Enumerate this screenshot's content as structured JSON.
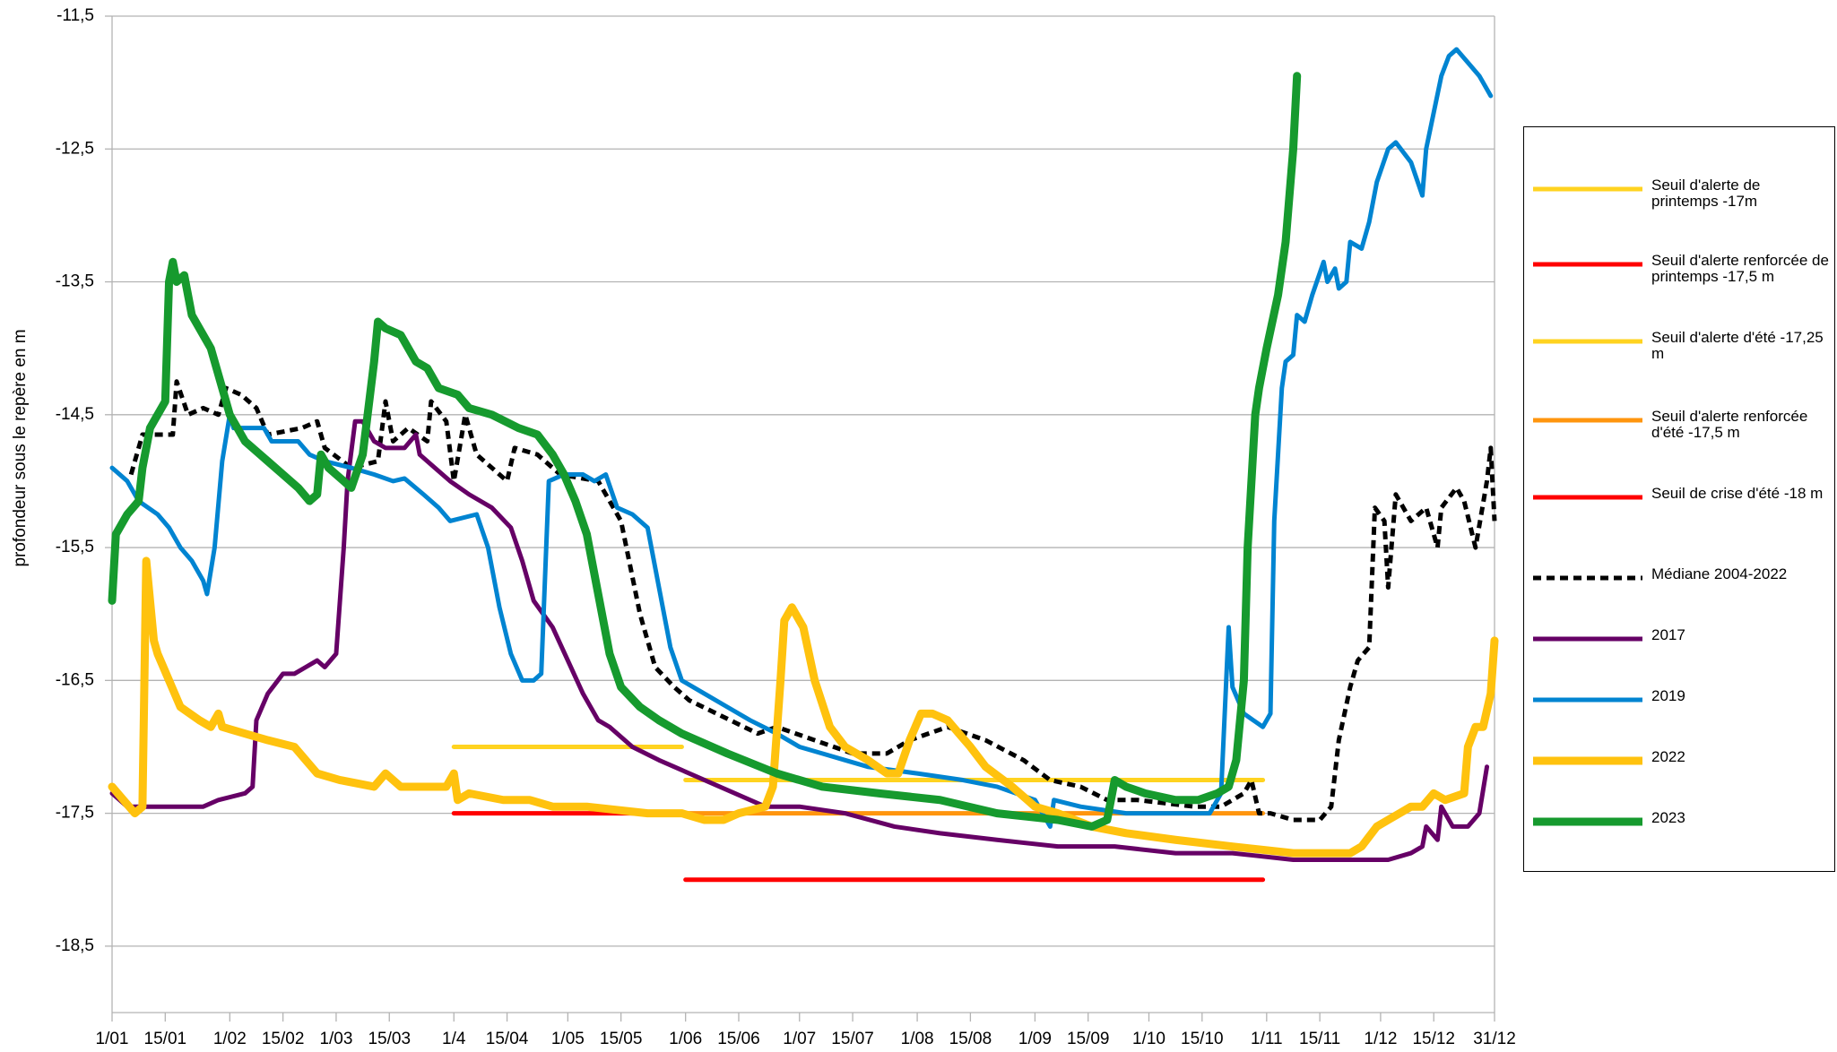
{
  "chart_data": {
    "type": "line",
    "y_label": "profondeur sous le repère en m",
    "xlim": [
      0,
      364
    ],
    "ylim": [
      -19,
      -11.5
    ],
    "grid": true,
    "legend": "right",
    "xticks": [
      {
        "value": 0,
        "label": "1/01"
      },
      {
        "value": 14,
        "label": "15/01"
      },
      {
        "value": 31,
        "label": "1/02"
      },
      {
        "value": 45,
        "label": "15/02"
      },
      {
        "value": 59,
        "label": "1/03"
      },
      {
        "value": 73,
        "label": "15/03"
      },
      {
        "value": 90,
        "label": "1/4"
      },
      {
        "value": 104,
        "label": "15/04"
      },
      {
        "value": 120,
        "label": "1/05"
      },
      {
        "value": 134,
        "label": "15/05"
      },
      {
        "value": 151,
        "label": "1/06"
      },
      {
        "value": 165,
        "label": "15/06"
      },
      {
        "value": 181,
        "label": "1/07"
      },
      {
        "value": 195,
        "label": "15/07"
      },
      {
        "value": 212,
        "label": "1/08"
      },
      {
        "value": 226,
        "label": "15/08"
      },
      {
        "value": 243,
        "label": "1/09"
      },
      {
        "value": 257,
        "label": "15/09"
      },
      {
        "value": 273,
        "label": "1/10"
      },
      {
        "value": 287,
        "label": "15/10"
      },
      {
        "value": 304,
        "label": "1/11"
      },
      {
        "value": 318,
        "label": "15/11"
      },
      {
        "value": 334,
        "label": "1/12"
      },
      {
        "value": 348,
        "label": "15/12"
      },
      {
        "value": 364,
        "label": "31/12"
      }
    ],
    "yticks": [
      {
        "value": -11.5,
        "label": "-11,5"
      },
      {
        "value": -12.5,
        "label": "-12,5"
      },
      {
        "value": -13.5,
        "label": "-13,5"
      },
      {
        "value": -14.5,
        "label": "-14,5"
      },
      {
        "value": -15.5,
        "label": "-15,5"
      },
      {
        "value": -16.5,
        "label": "-16,5"
      },
      {
        "value": -17.5,
        "label": "-17,5"
      },
      {
        "value": -18.5,
        "label": "-18,5"
      }
    ],
    "series": [
      {
        "name": "Seuil d'alerte de printemps -17m",
        "color": "#ffd320",
        "x": [
          90,
          150
        ],
        "values": [
          -17,
          -17
        ]
      },
      {
        "name": "Seuil d'alerte renforcée de printemps -17,5 m",
        "color": "#ff0000",
        "x": [
          90,
          151
        ],
        "values": [
          -17.5,
          -17.5
        ]
      },
      {
        "name": "Seuil d'alerte d'été -17,25 m",
        "color": "#ffd320",
        "x": [
          151,
          303
        ],
        "values": [
          -17.25,
          -17.25
        ]
      },
      {
        "name": "Seuil d'alerte renforcée d'été -17,5 m",
        "color": "#ff950e",
        "x": [
          151,
          303
        ],
        "values": [
          -17.5,
          -17.5
        ]
      },
      {
        "name": "Seuil de crise d'été -18 m",
        "color": "#ff0000",
        "x": [
          151,
          303
        ],
        "values": [
          -18,
          -18
        ]
      },
      {
        "name": "Médiane 2004-2022",
        "color": "#000000",
        "style": "dashed",
        "x": [
          5,
          8,
          12,
          16,
          17,
          20,
          24,
          28,
          30,
          34,
          38,
          41,
          50,
          54,
          56,
          63,
          70,
          72,
          74,
          78,
          83,
          84,
          88,
          90,
          93,
          96,
          104,
          106,
          112,
          118,
          128,
          134,
          139,
          143,
          148,
          152,
          170,
          175,
          180,
          185,
          195,
          204,
          210,
          220,
          230,
          240,
          247,
          255,
          262,
          270,
          285,
          292,
          298,
          300,
          302,
          305,
          311,
          318,
          321,
          323,
          326,
          328,
          331,
          332.5,
          335,
          336,
          338,
          342,
          346,
          349,
          350,
          354,
          356,
          359,
          362,
          363,
          364
        ],
        "values": [
          -14.95,
          -14.65,
          -14.65,
          -14.65,
          -14.25,
          -14.5,
          -14.45,
          -14.5,
          -14.3,
          -14.35,
          -14.45,
          -14.65,
          -14.6,
          -14.55,
          -14.75,
          -14.9,
          -14.85,
          -14.4,
          -14.7,
          -14.6,
          -14.7,
          -14.4,
          -14.55,
          -15.0,
          -14.5,
          -14.8,
          -15.0,
          -14.75,
          -14.8,
          -14.95,
          -15.0,
          -15.3,
          -16.0,
          -16.4,
          -16.55,
          -16.65,
          -16.9,
          -16.85,
          -16.9,
          -16.95,
          -17.05,
          -17.05,
          -16.95,
          -16.85,
          -16.95,
          -17.1,
          -17.25,
          -17.3,
          -17.4,
          -17.4,
          -17.45,
          -17.45,
          -17.35,
          -17.25,
          -17.5,
          -17.5,
          -17.55,
          -17.55,
          -17.45,
          -16.95,
          -16.55,
          -16.35,
          -16.25,
          -15.2,
          -15.3,
          -15.8,
          -15.1,
          -15.3,
          -15.2,
          -15.5,
          -15.2,
          -15.05,
          -15.15,
          -15.5,
          -15.0,
          -14.75,
          -15.3
        ]
      },
      {
        "name": "2017",
        "color": "#660066",
        "x": [
          0,
          4,
          9,
          20,
          24,
          28,
          35,
          37,
          38,
          41,
          45,
          48,
          51,
          54,
          56,
          59,
          61,
          62,
          64,
          66,
          69,
          72,
          77,
          80,
          81,
          85,
          89,
          94,
          100,
          105,
          108,
          111,
          116,
          120,
          124,
          128,
          131,
          137,
          144,
          156,
          172,
          181,
          193,
          206,
          218,
          233,
          249,
          264,
          280,
          295,
          311,
          326,
          336,
          342,
          345,
          346,
          349,
          350,
          353,
          357,
          360,
          362
        ],
        "values": [
          -17.35,
          -17.45,
          -17.45,
          -17.45,
          -17.45,
          -17.4,
          -17.35,
          -17.3,
          -16.8,
          -16.6,
          -16.45,
          -16.45,
          -16.4,
          -16.35,
          -16.4,
          -16.3,
          -15.5,
          -15.0,
          -14.55,
          -14.55,
          -14.7,
          -14.75,
          -14.75,
          -14.65,
          -14.8,
          -14.9,
          -15.0,
          -15.1,
          -15.2,
          -15.35,
          -15.6,
          -15.9,
          -16.1,
          -16.35,
          -16.6,
          -16.8,
          -16.85,
          -17.0,
          -17.1,
          -17.25,
          -17.45,
          -17.45,
          -17.5,
          -17.6,
          -17.65,
          -17.7,
          -17.75,
          -17.75,
          -17.8,
          -17.8,
          -17.85,
          -17.85,
          -17.85,
          -17.8,
          -17.75,
          -17.6,
          -17.7,
          -17.45,
          -17.6,
          -17.6,
          -17.5,
          -17.15
        ]
      },
      {
        "name": "2019",
        "color": "#0084d1",
        "x": [
          0,
          4,
          7,
          12,
          15,
          18,
          21,
          24,
          25,
          27,
          29,
          31,
          32,
          37,
          40,
          42,
          46,
          49,
          52,
          56,
          63,
          69,
          74,
          77,
          82,
          86,
          89,
          96,
          99,
          102,
          105,
          108,
          111,
          113,
          115,
          119,
          124,
          127,
          130,
          133,
          137,
          141,
          144,
          147,
          150,
          156,
          162,
          168,
          175,
          181,
          187,
          193,
          199,
          212,
          224,
          233,
          243,
          247,
          248,
          255,
          267,
          280,
          289,
          292,
          294,
          295,
          298,
          303,
          305,
          306,
          308,
          309,
          311,
          312,
          314,
          316,
          319,
          320,
          322,
          323,
          325,
          326,
          329,
          331,
          333,
          336,
          338,
          342,
          345,
          346,
          350,
          352,
          354,
          357,
          360,
          363
        ],
        "values": [
          -14.9,
          -15.0,
          -15.15,
          -15.25,
          -15.35,
          -15.5,
          -15.6,
          -15.75,
          -15.85,
          -15.5,
          -14.85,
          -14.5,
          -14.6,
          -14.6,
          -14.6,
          -14.7,
          -14.7,
          -14.7,
          -14.8,
          -14.85,
          -14.9,
          -14.95,
          -15.0,
          -14.98,
          -15.1,
          -15.2,
          -15.3,
          -15.25,
          -15.5,
          -15.95,
          -16.3,
          -16.5,
          -16.5,
          -16.45,
          -15.0,
          -14.95,
          -14.95,
          -15.0,
          -14.95,
          -15.2,
          -15.25,
          -15.35,
          -15.8,
          -16.25,
          -16.5,
          -16.6,
          -16.7,
          -16.8,
          -16.9,
          -17.0,
          -17.05,
          -17.1,
          -17.15,
          -17.2,
          -17.25,
          -17.3,
          -17.4,
          -17.6,
          -17.4,
          -17.45,
          -17.5,
          -17.5,
          -17.5,
          -17.35,
          -16.1,
          -16.55,
          -16.75,
          -16.85,
          -16.75,
          -15.3,
          -14.3,
          -14.1,
          -14.05,
          -13.75,
          -13.8,
          -13.6,
          -13.35,
          -13.5,
          -13.4,
          -13.55,
          -13.5,
          -13.2,
          -13.25,
          -13.05,
          -12.75,
          -12.5,
          -12.45,
          -12.6,
          -12.85,
          -12.5,
          -11.95,
          -11.8,
          -11.75,
          -11.85,
          -11.95,
          -12.1
        ]
      },
      {
        "name": "2022",
        "color": "#ffc20e",
        "x": [
          0,
          3,
          6,
          8,
          9,
          11,
          12,
          15,
          18,
          23,
          26,
          28,
          29,
          35,
          41,
          48,
          51,
          54,
          60,
          69,
          72,
          76,
          88,
          90,
          91,
          94,
          103,
          110,
          116,
          125,
          141,
          150,
          156,
          161,
          165,
          172,
          174,
          176,
          177,
          179,
          182,
          185,
          189,
          193,
          199,
          204,
          207,
          210,
          213,
          216,
          220,
          223,
          226,
          230,
          237,
          243,
          249,
          258,
          267,
          280,
          295,
          311,
          326,
          329,
          333,
          336,
          339,
          342,
          345,
          348,
          351,
          356,
          357,
          359,
          361,
          363,
          364
        ],
        "values": [
          -17.3,
          -17.4,
          -17.5,
          -17.45,
          -15.6,
          -16.2,
          -16.3,
          -16.5,
          -16.7,
          -16.8,
          -16.85,
          -16.75,
          -16.85,
          -16.9,
          -16.95,
          -17.0,
          -17.1,
          -17.2,
          -17.25,
          -17.3,
          -17.2,
          -17.3,
          -17.3,
          -17.2,
          -17.4,
          -17.35,
          -17.4,
          -17.4,
          -17.45,
          -17.45,
          -17.5,
          -17.5,
          -17.55,
          -17.55,
          -17.5,
          -17.45,
          -17.3,
          -16.5,
          -16.05,
          -15.95,
          -16.1,
          -16.5,
          -16.85,
          -17.0,
          -17.1,
          -17.2,
          -17.2,
          -16.95,
          -16.75,
          -16.75,
          -16.8,
          -16.9,
          -17.0,
          -17.15,
          -17.3,
          -17.45,
          -17.5,
          -17.6,
          -17.65,
          -17.7,
          -17.75,
          -17.8,
          -17.8,
          -17.75,
          -17.6,
          -17.55,
          -17.5,
          -17.45,
          -17.45,
          -17.35,
          -17.4,
          -17.35,
          -17.0,
          -16.85,
          -16.85,
          -16.6,
          -16.2
        ]
      },
      {
        "name": "2023",
        "color": "#169a2e",
        "x": [
          0,
          1,
          4,
          7,
          8,
          10,
          14,
          15,
          16,
          17,
          19,
          21,
          26,
          31,
          35,
          41,
          45,
          49,
          52,
          54,
          55,
          57,
          63,
          66,
          69,
          70,
          72,
          76,
          80,
          83,
          86,
          91,
          94,
          100,
          107,
          112,
          116,
          119,
          122,
          125,
          128,
          131,
          134,
          139,
          144,
          150,
          162,
          175,
          187,
          202,
          218,
          233,
          249,
          258,
          262,
          264,
          267,
          272,
          280,
          286,
          291,
          294,
          296,
          298,
          299,
          301,
          302,
          304,
          307,
          309,
          311,
          312
        ],
        "values": [
          -15.9,
          -15.4,
          -15.25,
          -15.15,
          -14.9,
          -14.6,
          -14.4,
          -13.5,
          -13.35,
          -13.5,
          -13.45,
          -13.75,
          -14.0,
          -14.5,
          -14.7,
          -14.85,
          -14.95,
          -15.05,
          -15.15,
          -15.1,
          -14.8,
          -14.9,
          -15.05,
          -14.8,
          -14.1,
          -13.8,
          -13.85,
          -13.9,
          -14.1,
          -14.15,
          -14.3,
          -14.35,
          -14.45,
          -14.5,
          -14.6,
          -14.65,
          -14.8,
          -14.95,
          -15.15,
          -15.4,
          -15.85,
          -16.3,
          -16.55,
          -16.7,
          -16.8,
          -16.9,
          -17.05,
          -17.2,
          -17.3,
          -17.35,
          -17.4,
          -17.5,
          -17.55,
          -17.6,
          -17.55,
          -17.25,
          -17.3,
          -17.35,
          -17.4,
          -17.4,
          -17.35,
          -17.3,
          -17.1,
          -16.5,
          -15.5,
          -14.5,
          -14.3,
          -14.0,
          -13.6,
          -13.2,
          -12.5,
          -11.95
        ]
      }
    ]
  }
}
